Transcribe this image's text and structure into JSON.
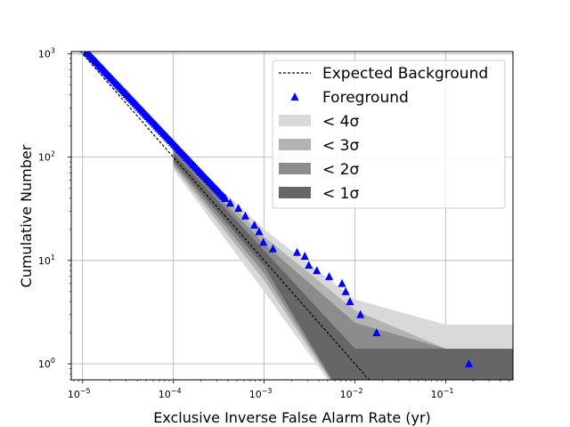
{
  "chart_data": {
    "type": "scatter",
    "xlabel": "Exclusive Inverse False Alarm Rate (yr)",
    "ylabel": "Cumulative Number",
    "xscale": "log",
    "yscale": "log",
    "xlim": [
      7.5e-06,
      0.55
    ],
    "ylim": [
      0.7,
      1050
    ],
    "grid": true,
    "legend_position": "upper-right",
    "x_ticks": [
      {
        "v": 1e-05,
        "b": "10",
        "e": "−5"
      },
      {
        "v": 0.0001,
        "b": "10",
        "e": "−4"
      },
      {
        "v": 0.001,
        "b": "10",
        "e": "−3"
      },
      {
        "v": 0.01,
        "b": "10",
        "e": "−2"
      },
      {
        "v": 0.1,
        "b": "10",
        "e": "−1"
      }
    ],
    "y_ticks": [
      {
        "v": 1,
        "b": "10",
        "e": "0"
      },
      {
        "v": 10,
        "b": "10",
        "e": "1"
      },
      {
        "v": 100,
        "b": "10",
        "e": "2"
      },
      {
        "v": 1000,
        "b": "10",
        "e": "3"
      }
    ],
    "legend": [
      {
        "kind": "line",
        "label": "Expected Background",
        "color": "#000000"
      },
      {
        "kind": "marker",
        "label": "Foreground",
        "color": "#0000ff"
      },
      {
        "kind": "patch",
        "label": "< 4σ",
        "color": "#d9d9d9"
      },
      {
        "kind": "patch",
        "label": "< 3σ",
        "color": "#b3b3b3"
      },
      {
        "kind": "patch",
        "label": "< 2σ",
        "color": "#8c8c8c"
      },
      {
        "kind": "patch",
        "label": "< 1σ",
        "color": "#666666"
      }
    ],
    "expected_background": {
      "color": "#000000",
      "x": [
        7.5e-06,
        1e-05,
        0.0001,
        0.001,
        0.01,
        0.02
      ],
      "y": [
        1333,
        1000,
        100,
        10,
        1,
        0.5
      ]
    },
    "bands": [
      {
        "sigma": 4,
        "color": "#d9d9d9",
        "x": [
          0.0001,
          0.001,
          0.01,
          0.1,
          0.55
        ],
        "lower": [
          76,
          5.0,
          0.3,
          0.3,
          0.3
        ],
        "upper": [
          130,
          20,
          4.2,
          2.4,
          2.4
        ]
      },
      {
        "sigma": 3,
        "color": "#b3b3b3",
        "x": [
          0.0001,
          0.001,
          0.01,
          0.1,
          0.55
        ],
        "lower": [
          81,
          6.4,
          0.3,
          0.3,
          0.3
        ],
        "upper": [
          122,
          17,
          3.3,
          1.4,
          1.4
        ]
      },
      {
        "sigma": 2,
        "color": "#8c8c8c",
        "x": [
          0.0001,
          0.001,
          0.01,
          0.1,
          0.55
        ],
        "lower": [
          86,
          7.5,
          0.3,
          0.3,
          0.3
        ],
        "upper": [
          116,
          14.5,
          2.5,
          1.4,
          1.4
        ]
      },
      {
        "sigma": 1,
        "color": "#666666",
        "x": [
          0.0001,
          0.001,
          0.01,
          0.1,
          0.55
        ],
        "lower": [
          91,
          8.8,
          0.3,
          0.3,
          0.3
        ],
        "upper": [
          110,
          12.5,
          1.4,
          1.4,
          1.4
        ]
      }
    ],
    "foreground": {
      "color": "#0000ff",
      "x": [
        0.000372,
        0.000423,
        0.00052,
        0.00062,
        0.00078,
        0.00088,
        0.00098,
        0.00125,
        0.0023,
        0.0028,
        0.0031,
        0.0038,
        0.0052,
        0.0072,
        0.0079,
        0.0088,
        0.0115,
        0.0173,
        0.18
      ],
      "y": [
        40,
        36,
        32,
        27,
        22,
        19,
        15,
        13,
        12,
        11,
        9,
        8,
        7,
        6,
        5,
        4,
        3,
        2,
        1
      ]
    },
    "foreground_dense_range": {
      "x": [
        1.1e-05,
        0.00037
      ],
      "y": [
        1050,
        40
      ]
    }
  }
}
